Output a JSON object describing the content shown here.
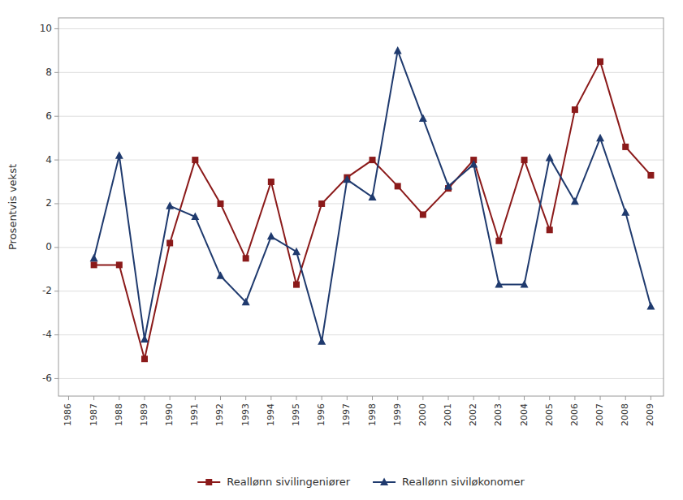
{
  "chart_data": {
    "type": "line",
    "y_label": "Prosentvis vekst",
    "x": [
      1987,
      1988,
      1989,
      1990,
      1991,
      1992,
      1993,
      1994,
      1995,
      1996,
      1997,
      1998,
      1999,
      2000,
      2001,
      2002,
      2003,
      2004,
      2005,
      2006,
      2007,
      2008,
      2009
    ],
    "series": [
      {
        "name": "Reallønn sivilingeniører",
        "color": "#8B1A1A",
        "marker": "square",
        "line_style": "solid",
        "values": [
          -0.8,
          -0.8,
          -5.1,
          0.2,
          4.0,
          2.0,
          -0.5,
          3.0,
          -1.7,
          2.0,
          3.2,
          4.0,
          2.8,
          1.5,
          2.7,
          4.0,
          0.3,
          4.0,
          0.8,
          6.3,
          8.5,
          4.6,
          3.3
        ]
      },
      {
        "name": "Reallønn siviløkonomer",
        "color": "#1F3A6E",
        "marker": "triangle",
        "line_style": "solid",
        "values": [
          -0.5,
          4.2,
          -4.2,
          1.9,
          1.4,
          -1.3,
          -2.5,
          0.5,
          -0.2,
          -4.3,
          3.1,
          2.3,
          9.0,
          5.9,
          2.8,
          3.8,
          -1.7,
          -1.7,
          4.1,
          2.1,
          5.0,
          1.6,
          -2.7
        ]
      }
    ],
    "xlim": [
      1985.6,
      2009.5
    ],
    "xticks": [
      1986,
      1987,
      1988,
      1989,
      1990,
      1991,
      1992,
      1993,
      1994,
      1995,
      1996,
      1997,
      1998,
      1999,
      2000,
      2001,
      2002,
      2003,
      2004,
      2005,
      2006,
      2007,
      2008,
      2009
    ],
    "ylim": [
      -6.8,
      10.5
    ],
    "yticks": [
      -6,
      -4,
      -2,
      0,
      2,
      4,
      6,
      8,
      10
    ],
    "grid": "y",
    "legend": "bottom"
  }
}
